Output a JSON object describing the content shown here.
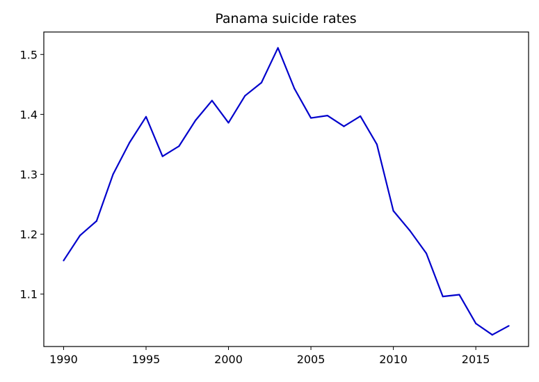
{
  "chart_data": {
    "type": "line",
    "title": "Panama suicide rates",
    "xlabel": "",
    "ylabel": "",
    "xlim": [
      1988.8,
      2018.2
    ],
    "ylim": [
      1.0125,
      1.5375
    ],
    "x_ticks": [
      "1990",
      "1995",
      "2000",
      "2005",
      "2010",
      "2015"
    ],
    "y_ticks": [
      "1.1",
      "1.2",
      "1.3",
      "1.4",
      "1.5"
    ],
    "grid": false,
    "legend": "none",
    "series": [
      {
        "color": "#0000cc",
        "x": [
          1990,
          1991,
          1992,
          1993,
          1994,
          1995,
          1996,
          1997,
          1998,
          1999,
          2000,
          2001,
          2002,
          2003,
          2004,
          2005,
          2006,
          2007,
          2008,
          2009,
          2010,
          2011,
          2012,
          2013,
          2014,
          2015,
          2016,
          2017
        ],
        "values": [
          1.156,
          1.198,
          1.222,
          1.3,
          1.353,
          1.396,
          1.33,
          1.347,
          1.39,
          1.423,
          1.386,
          1.431,
          1.453,
          1.511,
          1.443,
          1.394,
          1.398,
          1.38,
          1.397,
          1.35,
          1.239,
          1.206,
          1.168,
          1.096,
          1.099,
          1.051,
          1.032,
          1.047
        ]
      }
    ]
  }
}
